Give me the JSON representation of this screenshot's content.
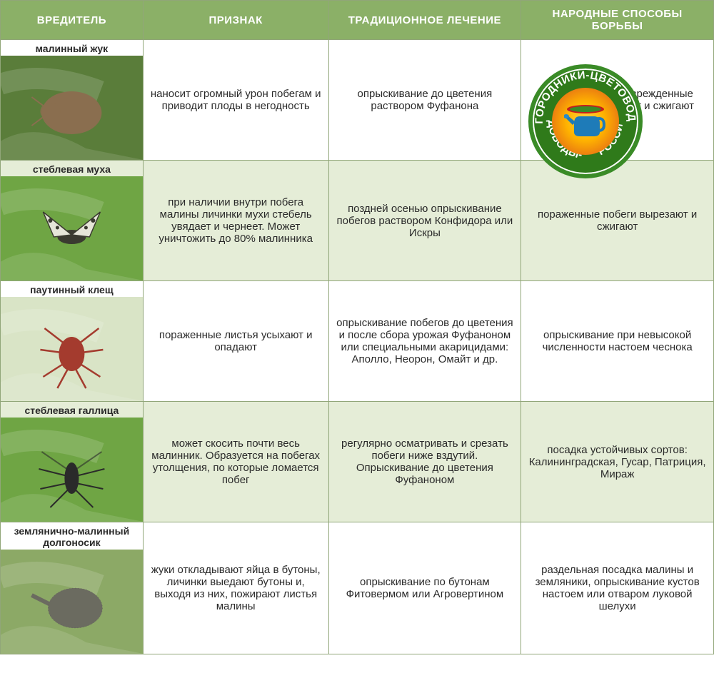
{
  "columns": {
    "pest": "ВРЕДИТЕЛЬ",
    "sign": "ПРИЗНАК",
    "treatment": "ТРАДИЦИОННОЕ ЛЕЧЕНИЕ",
    "folk": "НАРОДНЫЕ СПОСОБЫ БОРЬБЫ"
  },
  "rows": [
    {
      "name": "малинный жук",
      "sign": "наносит огромный урон побегам и приводит плоды в негодность",
      "treatment": "опрыскивание до цветения раствором Фуфанона",
      "folk": "побеги, сильно поврежденные личинками, срезают и сжигают",
      "alt": false,
      "img_bg": "#5a7d3a",
      "insect_color": "#8a6e4f"
    },
    {
      "name": "стеблевая муха",
      "sign": "при наличии внутри побега малины личинки мухи стебель увядает и чернеет. Может уничтожить до 80% малинника",
      "treatment": "поздней осенью опрыскивание побегов раствором Конфидора или Искры",
      "folk": "пораженные побеги вырезают и сжигают",
      "alt": true,
      "img_bg": "#6fa544",
      "insect_color": "#3a3a30"
    },
    {
      "name": "паутинный клещ",
      "sign": "пораженные листья усыхают и опадают",
      "treatment": "опрыскивание побегов до цветения и после сбора урожая Фуфаноном или специальными акарицидами: Аполло, Неорон, Омайт и др.",
      "folk": "опрыскивание при невысокой численности настоем чеснока",
      "alt": false,
      "img_bg": "#d9e4c6",
      "insect_color": "#a43b2e"
    },
    {
      "name": "стеблевая галлица",
      "sign": "может скосить почти весь малинник. Образуется на побегах утолщения, по которые ломается побег",
      "treatment": "регулярно осматривать и срезать побеги ниже вздутий. Опрыскивание до цветения Фуфаноном",
      "folk": "посадка устойчивых сортов: Калининградская, Гусар, Патриция, Мираж",
      "alt": true,
      "img_bg": "#6fa544",
      "insect_color": "#2a2a2a"
    },
    {
      "name": "землянично-малинный долгоносик",
      "sign": "жуки откладывают яйца в бутоны, личинки выедают бутоны и, выходя из них, пожирают листья малины",
      "treatment": "опрыскивание по бутонам Фитовермом или Агровертином",
      "folk": "раздельная посадка малины и земляники, опрыскивание кустов настоем или отваром луковой шелухи",
      "alt": false,
      "img_bg": "#8ca966",
      "insect_color": "#6b6b60"
    }
  ],
  "badge": {
    "text_top": "ОГОРОДНИКИ-ЦВЕТОВОДЫ",
    "side_left": "САДОВОДЫ-",
    "side_right": "РОССИИ",
    "ring_color": "#2f7a1a",
    "border_color": "#3a8b27"
  },
  "styling": {
    "header_bg": "#8bb067",
    "header_text": "#ffffff",
    "border_color": "#91a679",
    "row_alt_bg": "#e5edd7",
    "body_text": "#2a2a2a",
    "font_size_header": 15,
    "font_size_cell": 15,
    "font_size_pest_name": 14
  }
}
